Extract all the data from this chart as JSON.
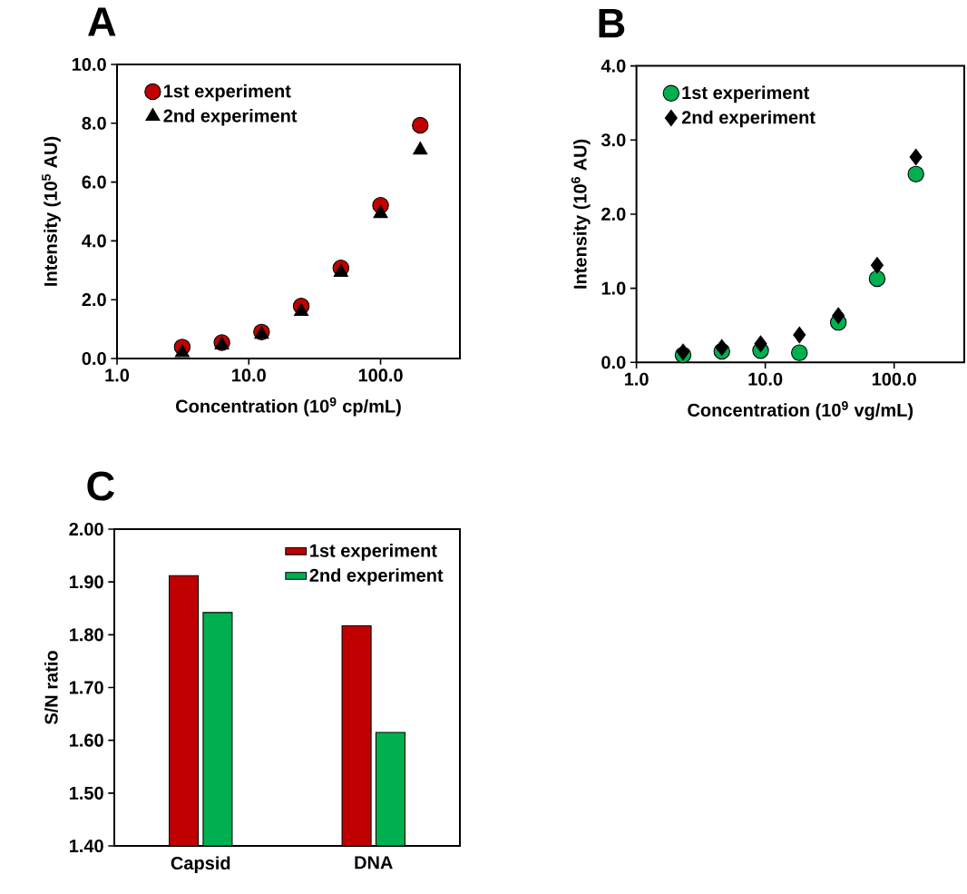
{
  "chart_data": [
    {
      "type": "scatter",
      "title": "A",
      "xlabel": "Concentration (10$^{9}$ cp/mL)",
      "ylabel": "Intensity (10$^{5}$ AU)",
      "log": "x",
      "xlim": [
        1,
        400
      ],
      "ylim": [
        0,
        10
      ],
      "xticks": [
        {
          "value": 1,
          "label": "1.0"
        },
        {
          "value": 10,
          "label": "10.0"
        },
        {
          "value": 100,
          "label": "100.0"
        }
      ],
      "yticks": [
        {
          "value": 0,
          "label": "0.0"
        },
        {
          "value": 2,
          "label": "2.0"
        },
        {
          "value": 4,
          "label": "4.0"
        },
        {
          "value": 6,
          "label": "6.0"
        },
        {
          "value": 8,
          "label": "8.0"
        },
        {
          "value": 10,
          "label": "10.0"
        }
      ],
      "legend": "top left",
      "series": [
        {
          "name": "1st experiment",
          "color": "#c00000",
          "marker": "circle",
          "x": [
            3.125,
            6.25,
            12.5,
            25,
            50,
            100,
            200
          ],
          "values": [
            0.39,
            0.54,
            0.9,
            1.78,
            3.08,
            5.21,
            7.93
          ]
        },
        {
          "name": "2nd experiment",
          "color": "#000000",
          "marker": "triangle",
          "x": [
            3.125,
            6.25,
            12.5,
            25,
            50,
            100,
            200
          ],
          "values": [
            0.2,
            0.46,
            0.82,
            1.6,
            2.93,
            4.93,
            7.09
          ]
        }
      ]
    },
    {
      "type": "scatter",
      "title": "B",
      "xlabel": "Concentration (10$^{9}$ vg/mL)",
      "ylabel": "Intensity (10$^{6}$ AU)",
      "log": "x",
      "xlim": [
        1,
        350
      ],
      "ylim": [
        0,
        4
      ],
      "xticks": [
        {
          "value": 1,
          "label": "1.0"
        },
        {
          "value": 10,
          "label": "10.0"
        },
        {
          "value": 100,
          "label": "100.0"
        }
      ],
      "yticks": [
        {
          "value": 0,
          "label": "0.0"
        },
        {
          "value": 1,
          "label": "1.0"
        },
        {
          "value": 2,
          "label": "2.0"
        },
        {
          "value": 3,
          "label": "3.0"
        },
        {
          "value": 4,
          "label": "4.0"
        }
      ],
      "legend": "top left",
      "series": [
        {
          "name": "1st experiment",
          "color": "#00b050",
          "marker": "circle",
          "x": [
            2.3,
            4.6,
            9.2,
            18.4,
            36.9,
            73.8,
            147.5
          ],
          "values": [
            0.1,
            0.15,
            0.16,
            0.13,
            0.54,
            1.13,
            2.54
          ]
        },
        {
          "name": "2nd experiment",
          "color": "#000000",
          "marker": "diamond",
          "x": [
            2.3,
            4.6,
            9.2,
            18.4,
            36.9,
            73.8,
            147.5
          ],
          "values": [
            0.14,
            0.2,
            0.25,
            0.37,
            0.63,
            1.31,
            2.77
          ]
        }
      ]
    },
    {
      "type": "bar",
      "title": "C",
      "ylabel": "S/N ratio",
      "categories": [
        "Capsid",
        "DNA"
      ],
      "ylim": [
        1.4,
        2.0
      ],
      "yticks": [
        {
          "value": 1.4,
          "label": "1.40"
        },
        {
          "value": 1.5,
          "label": "1.50"
        },
        {
          "value": 1.6,
          "label": "1.60"
        },
        {
          "value": 1.7,
          "label": "1.70"
        },
        {
          "value": 1.8,
          "label": "1.80"
        },
        {
          "value": 1.9,
          "label": "1.90"
        },
        {
          "value": 2.0,
          "label": "2.00"
        }
      ],
      "legend": "top right",
      "series": [
        {
          "name": "1st experiment",
          "color": "#c00000",
          "values": [
            1.912,
            1.817
          ]
        },
        {
          "name": "2nd experiment",
          "color": "#00b050",
          "values": [
            1.842,
            1.615
          ]
        }
      ]
    }
  ]
}
